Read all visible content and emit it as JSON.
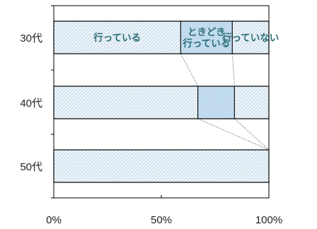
{
  "chart_data": {
    "type": "bar",
    "orientation": "horizontal",
    "stacked": true,
    "percent": true,
    "categories": [
      "30代",
      "40代",
      "50代"
    ],
    "series": [
      {
        "name": "行っている",
        "values": [
          59,
          67,
          100
        ]
      },
      {
        "name": "ときどき行っている",
        "values": [
          24,
          17,
          0
        ]
      },
      {
        "name": "行っていない",
        "values": [
          17,
          16,
          0
        ]
      }
    ],
    "series_label_lines": [
      [
        "行っている"
      ],
      [
        "ときどき",
        "行っている"
      ],
      [
        "行っていない"
      ]
    ],
    "x_tick_labels": [
      "0%",
      "50%",
      "100%"
    ],
    "xlim": [
      0,
      100
    ],
    "series_lines": true,
    "legend": "none",
    "grid": false,
    "title": "",
    "xlabel": "",
    "ylabel": ""
  },
  "style": {
    "pattern_fill": "#eef5fa",
    "pattern_stroke": "#b6cfe0",
    "middle_fill": "#cfe4f4",
    "middle_stroke": "#9cc3e0",
    "outline": "#000000",
    "series_line": "#8a8a8a",
    "label_color": "#2e6f78"
  }
}
